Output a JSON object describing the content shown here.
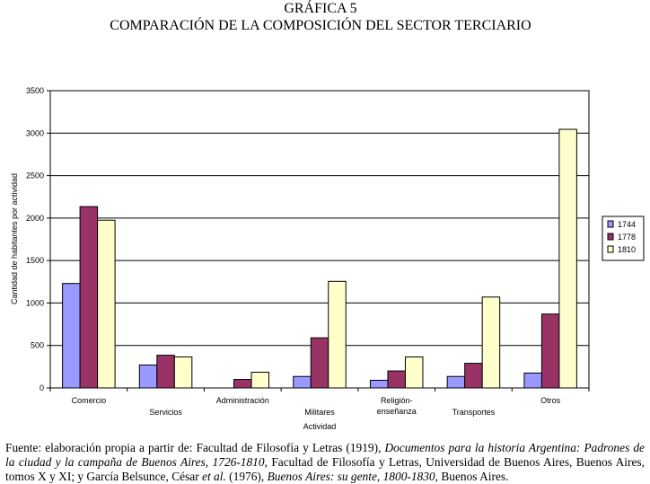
{
  "figure": {
    "title": "GRÁFICA 5",
    "subtitle": "COMPARACIÓN DE LA COMPOSICIÓN DEL SECTOR TERCIARIO"
  },
  "chart_data": {
    "type": "bar",
    "categories": [
      "Comercio",
      "Servicios",
      "Administración",
      "Militares",
      "Religión-enseñanza",
      "Transportes",
      "Otros"
    ],
    "category_label_lines": [
      [
        "Comercio"
      ],
      [
        "Servicios"
      ],
      [
        "Administración"
      ],
      [
        "Militares"
      ],
      [
        "Religión-",
        "enseñanza"
      ],
      [
        "Transportes"
      ],
      [
        "Otros"
      ]
    ],
    "series": [
      {
        "name": "1744",
        "color": "#9999ff",
        "values": [
          1230,
          270,
          0,
          135,
          90,
          135,
          175
        ]
      },
      {
        "name": "1778",
        "color": "#993366",
        "values": [
          2135,
          385,
          100,
          590,
          200,
          290,
          870
        ]
      },
      {
        "name": "1810",
        "color": "#ffffcc",
        "values": [
          1975,
          365,
          185,
          1255,
          365,
          1070,
          3045
        ]
      }
    ],
    "xlabel": "Actividad",
    "ylabel": "Cantidad de habitantes por actividad",
    "ylim": [
      0,
      3500
    ],
    "yticks": [
      "0",
      "500",
      "1000",
      "1500",
      "2000",
      "2500",
      "3000",
      "3500"
    ],
    "grid": true,
    "legend_position": "right"
  },
  "source": {
    "prefix": "Fuente: elaboración propia a partir de: Facultad de Filosofía y Letras (1919), ",
    "title1": "Documentos para la historia Argentina: Padrones de la ciudad y la campaña de Buenos Aires, 1726-1810",
    "middle1": ", Facultad de Filosofía y Letras, Universidad de Buenos Aires, Buenos Aires, tomos X y XI; y García Belsunce, César ",
    "etal": "et al.",
    "middle2": " (1976), ",
    "title2": "Buenos Aires: su gente, 1800-1830",
    "suffix": ", Buenos Aires."
  }
}
